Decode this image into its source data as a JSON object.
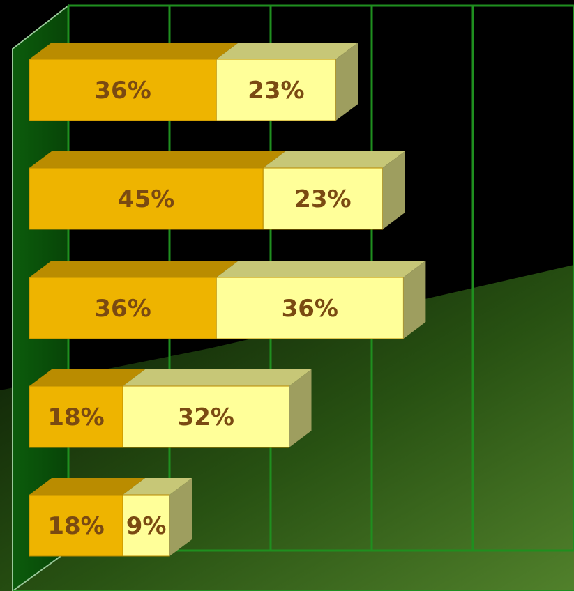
{
  "chart_data": {
    "type": "bar",
    "orientation": "horizontal",
    "stacked": true,
    "style": "3d",
    "title": "",
    "xlabel": "",
    "ylabel": "",
    "xlim": [
      0,
      100
    ],
    "grid": true,
    "legend": "none",
    "series": [
      {
        "values": [
          36,
          45,
          36,
          18,
          18
        ],
        "labels": [
          "36%",
          "45%",
          "36%",
          "18%",
          "18%"
        ],
        "color": "#EEB400"
      },
      {
        "values": [
          23,
          23,
          36,
          32,
          9
        ],
        "labels": [
          "23%",
          "23%",
          "36%",
          "32%",
          "9%"
        ],
        "color": "#FFFF99"
      }
    ]
  },
  "colors": {
    "background": "#000000",
    "grid_line": "#1f8f1f",
    "wall": "#0a5a0a",
    "floor_light": "#4a7a2a",
    "label_text": "#7a4a12"
  }
}
